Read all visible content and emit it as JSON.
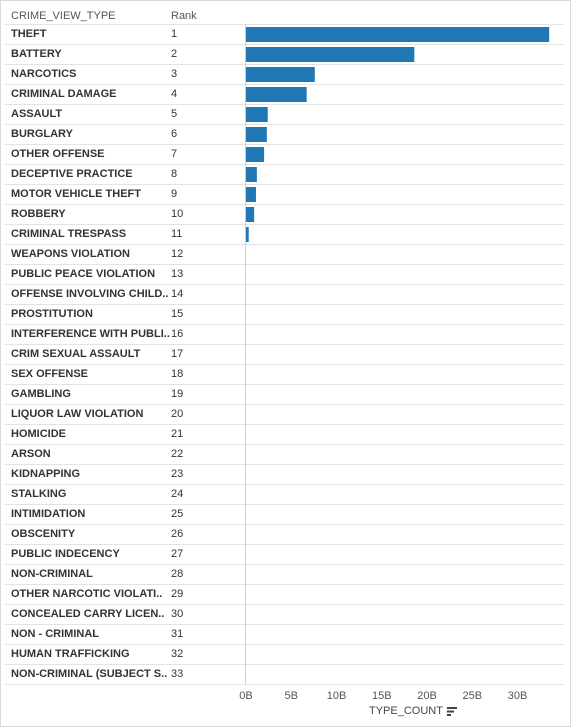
{
  "chart_data": {
    "type": "bar",
    "orientation": "horizontal",
    "row_header": "CRIME_VIEW_TYPE",
    "rank_header": "Rank",
    "xlabel": "TYPE_COUNT",
    "xlim": [
      0,
      36
    ],
    "x_ticks": [
      "0B",
      "5B",
      "10B",
      "15B",
      "20B",
      "25B",
      "30B"
    ],
    "x_tick_values": [
      0,
      5,
      10,
      15,
      20,
      25,
      30
    ],
    "bar_color": "#1f77b4",
    "categories": [
      "THEFT",
      "BATTERY",
      "NARCOTICS",
      "CRIMINAL DAMAGE",
      "ASSAULT",
      "BURGLARY",
      "OTHER OFFENSE",
      "DECEPTIVE PRACTICE",
      "MOTOR VEHICLE THEFT",
      "ROBBERY",
      "CRIMINAL TRESPASS",
      "WEAPONS VIOLATION",
      "PUBLIC PEACE VIOLATION",
      "OFFENSE INVOLVING CHILD..",
      "PROSTITUTION",
      "INTERFERENCE WITH PUBLI..",
      "CRIM SEXUAL ASSAULT",
      "SEX OFFENSE",
      "GAMBLING",
      "LIQUOR LAW VIOLATION",
      "HOMICIDE",
      "ARSON",
      "KIDNAPPING",
      "STALKING",
      "INTIMIDATION",
      "OBSCENITY",
      "PUBLIC INDECENCY",
      "NON-CRIMINAL",
      "OTHER NARCOTIC VIOLATI..",
      "CONCEALED CARRY LICEN..",
      "NON - CRIMINAL",
      "HUMAN TRAFFICKING",
      "NON-CRIMINAL (SUBJECT S.."
    ],
    "ranks": [
      "1",
      "2",
      "3",
      "4",
      "5",
      "6",
      "7",
      "8",
      "9",
      "10",
      "11",
      "12",
      "13",
      "14",
      "15",
      "16",
      "17",
      "18",
      "19",
      "20",
      "21",
      "22",
      "23",
      "24",
      "25",
      "26",
      "27",
      "28",
      "29",
      "30",
      "31",
      "32",
      "33"
    ],
    "values": [
      33.5,
      18.6,
      7.6,
      6.7,
      2.4,
      2.3,
      2.0,
      1.2,
      1.1,
      0.9,
      0.3,
      0.05,
      0.04,
      0.03,
      0.03,
      0.02,
      0.02,
      0.01,
      0.01,
      0.01,
      0.01,
      0.005,
      0.005,
      0.004,
      0.003,
      0.002,
      0.002,
      0.001,
      0.001,
      0.001,
      0.0005,
      0.0005,
      0.0002
    ]
  }
}
